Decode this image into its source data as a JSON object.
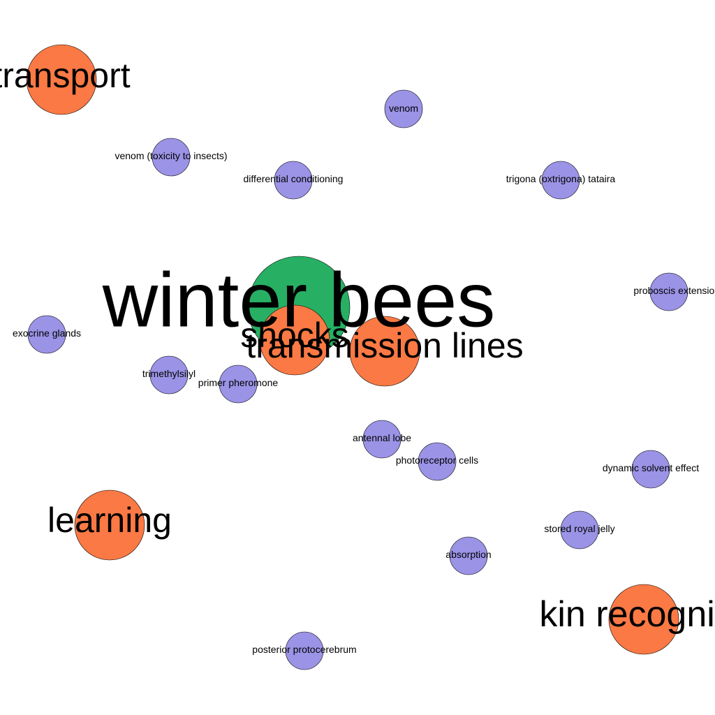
{
  "colors": {
    "central": "#27b064",
    "major": "#fb7944",
    "minor": "#9b93e6",
    "background": "#ffffff"
  },
  "nodes": [
    {
      "id": "transport",
      "label": "transport",
      "group": "major"
    },
    {
      "id": "venom",
      "label": "venom",
      "group": "minor"
    },
    {
      "id": "venom-toxicity",
      "label": "venom (toxicity to insects)",
      "group": "minor"
    },
    {
      "id": "differential-conditioning",
      "label": "differential conditioning",
      "group": "minor"
    },
    {
      "id": "trigona",
      "label": "trigona (oxtrigona) tataira",
      "group": "minor"
    },
    {
      "id": "proboscis",
      "label": "proboscis extension response",
      "group": "minor"
    },
    {
      "id": "exocrine-glands",
      "label": "exocrine glands",
      "group": "minor"
    },
    {
      "id": "trimethylsilyl",
      "label": "trimethylsilyl",
      "group": "minor"
    },
    {
      "id": "primer-pheromone",
      "label": "primer pheromone",
      "group": "minor"
    },
    {
      "id": "antennal-lobe",
      "label": "antennal lobe",
      "group": "minor"
    },
    {
      "id": "photoreceptor-cells",
      "label": "photoreceptor cells",
      "group": "minor"
    },
    {
      "id": "dynamic-solvent",
      "label": "dynamic solvent effect",
      "group": "minor"
    },
    {
      "id": "stored-royal-jelly",
      "label": "stored royal jelly",
      "group": "minor"
    },
    {
      "id": "absorption",
      "label": "absorption",
      "group": "minor"
    },
    {
      "id": "posterior-protocerebrum",
      "label": "posterior protocerebrum",
      "group": "minor"
    },
    {
      "id": "learning",
      "label": "learning",
      "group": "major"
    },
    {
      "id": "kin-recognition",
      "label": "kin recognition",
      "group": "major"
    },
    {
      "id": "winter-bees",
      "label": "winter bees",
      "group": "central"
    },
    {
      "id": "shocks",
      "label": "shocks",
      "group": "major"
    },
    {
      "id": "transmission-lines",
      "label": "transmission lines",
      "group": "major"
    }
  ]
}
